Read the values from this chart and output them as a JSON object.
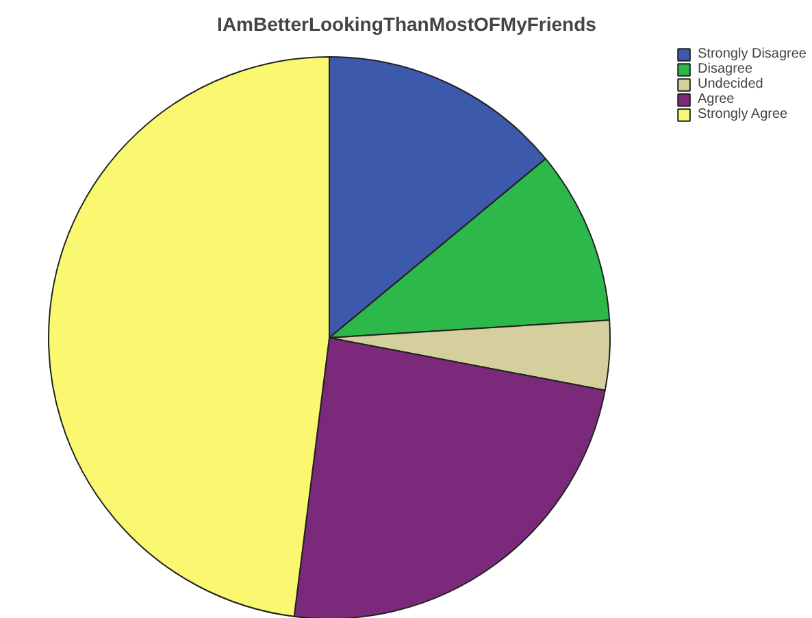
{
  "chart_data": {
    "type": "pie",
    "title": "IAmBetterLookingThanMostOFMyFriends",
    "categories": [
      "Strongly Disagree",
      "Disagree",
      "Undecided",
      "Agree",
      "Strongly Agree"
    ],
    "values": [
      14,
      10,
      4,
      24,
      48
    ],
    "colors": [
      "#3d59ab",
      "#2db84a",
      "#d4cf9c",
      "#7b2a7b",
      "#faf770"
    ],
    "legend": "top right"
  }
}
